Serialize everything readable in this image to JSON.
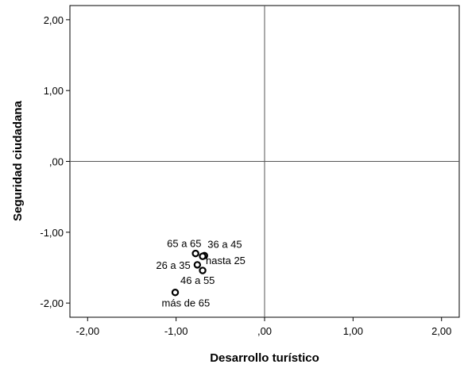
{
  "chart_data": {
    "type": "scatter",
    "title": "",
    "xlabel": "Desarrollo turístico",
    "ylabel": "Seguridad ciudadana",
    "xlim": [
      -2.2,
      2.2
    ],
    "ylim": [
      -2.2,
      2.2
    ],
    "x_ticks": [
      -2,
      -1,
      0,
      1,
      2
    ],
    "x_tick_labels": [
      "-2,00",
      "-1,00",
      ",00",
      "1,00",
      "2,00"
    ],
    "y_ticks": [
      -2,
      -1,
      0,
      1,
      2
    ],
    "y_tick_labels": [
      "-2,00",
      "-1,00",
      ",00",
      "1,00",
      "2,00"
    ],
    "reference_lines": {
      "x": 0,
      "y": 0
    },
    "grid": false,
    "points": [
      {
        "label": "65 a 65",
        "x": -0.78,
        "y": -1.3
      },
      {
        "label": "36 a 45",
        "x": -0.68,
        "y": -1.33
      },
      {
        "label": "hasta 25",
        "x": -0.7,
        "y": -1.34
      },
      {
        "label": "26 a 35",
        "x": -0.76,
        "y": -1.46
      },
      {
        "label": "46 a 55",
        "x": -0.7,
        "y": -1.54
      },
      {
        "label": "más de 65",
        "x": -1.01,
        "y": -1.85
      }
    ],
    "colors": {
      "marker": "#000000",
      "axis": "#000000",
      "reference": "#555555"
    }
  }
}
